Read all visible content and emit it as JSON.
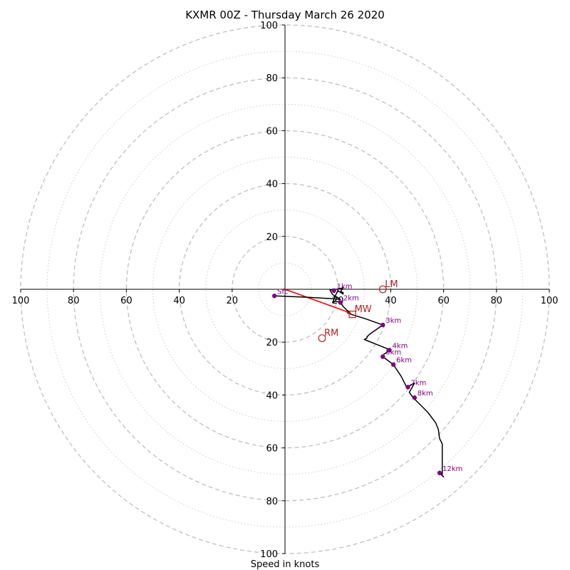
{
  "chart_data": {
    "type": "hodograph",
    "title": "KXMR 00Z - Thursday March 26 2020",
    "xlabel": "Speed in knots",
    "ylim": [
      -100,
      100
    ],
    "xlim": [
      -100,
      100
    ],
    "tick_labels": [
      "100",
      "80",
      "60",
      "40",
      "20",
      "20",
      "40",
      "60",
      "80",
      "100"
    ],
    "y_tick_labels": [
      "100",
      "80",
      "60",
      "40",
      "20",
      "20",
      "40",
      "60",
      "80",
      "100"
    ],
    "rings": {
      "dashed": [
        20,
        40,
        60,
        80,
        100
      ],
      "dotted": [
        10,
        30,
        50,
        70,
        90
      ]
    },
    "grid": true,
    "hodograph_line": [
      [
        -4,
        -2.5
      ],
      [
        -4,
        -2.5
      ],
      [
        8,
        -3
      ],
      [
        17,
        -3.5
      ],
      [
        21,
        -3.8
      ],
      [
        18,
        -2
      ],
      [
        17,
        -0.3
      ],
      [
        18,
        0
      ],
      [
        20,
        0
      ],
      [
        22,
        0.6
      ],
      [
        21,
        -1
      ],
      [
        22,
        -1.2
      ],
      [
        22,
        -1.8
      ],
      [
        20,
        -0.5
      ],
      [
        19,
        -2.5
      ],
      [
        18,
        -5
      ],
      [
        19,
        -4.5
      ],
      [
        21,
        -5
      ],
      [
        22,
        -6.5
      ],
      [
        25,
        -9.5
      ],
      [
        30,
        -11
      ],
      [
        37,
        -13.5
      ],
      [
        32,
        -17
      ],
      [
        31,
        -18
      ],
      [
        31,
        -18.5
      ],
      [
        30,
        -19
      ],
      [
        35,
        -21
      ],
      [
        40,
        -23
      ],
      [
        37.5,
        -24.5
      ],
      [
        37,
        -25.5
      ],
      [
        41,
        -28.5
      ],
      [
        44,
        -33
      ],
      [
        46,
        -37
      ],
      [
        49,
        -35.5
      ],
      [
        47,
        -39
      ],
      [
        48.5,
        -41
      ],
      [
        51,
        -43.5
      ],
      [
        54,
        -46.5
      ],
      [
        57,
        -50.5
      ],
      [
        58,
        -53
      ],
      [
        58.5,
        -56.5
      ],
      [
        59.5,
        -58.5
      ],
      [
        59.5,
        -61
      ],
      [
        59.5,
        -63.5
      ],
      [
        59.5,
        -66
      ],
      [
        59.5,
        -68
      ],
      [
        59.5,
        -70
      ],
      [
        59,
        -70
      ],
      [
        60,
        -71
      ],
      [
        59.5,
        -70.5
      ]
    ],
    "height_markers": [
      {
        "label": "Sfc",
        "u": -4,
        "v": -2.5
      },
      {
        "label": "1km",
        "u": 18.5,
        "v": -0.5
      },
      {
        "label": "2km",
        "u": 21,
        "v": -5
      },
      {
        "label": "3km",
        "u": 37,
        "v": -13.5
      },
      {
        "label": "4km",
        "u": 39.5,
        "v": -23
      },
      {
        "label": "5km",
        "u": 37,
        "v": -25.5
      },
      {
        "label": "6km",
        "u": 41,
        "v": -28.5
      },
      {
        "label": "7km",
        "u": 46.5,
        "v": -37
      },
      {
        "label": "8km",
        "u": 49,
        "v": -41
      },
      {
        "label": "12km",
        "u": 58.5,
        "v": -69.5
      }
    ],
    "motions": [
      {
        "label": "LM",
        "u": 37,
        "v": 0,
        "marker": "circle"
      },
      {
        "label": "MW",
        "u": 25.5,
        "v": -9.5,
        "marker": "square"
      },
      {
        "label": "RM",
        "u": 14,
        "v": -18.5,
        "marker": "circle"
      }
    ],
    "shear_vector": {
      "from": [
        0,
        0
      ],
      "to": [
        24,
        -8.7
      ]
    },
    "colors": {
      "hodograph": "#000000",
      "markers": "#800080",
      "motion": "#b22222",
      "shear": "#ff0000",
      "grid": "#bbbbbb",
      "axes": "#000000"
    }
  }
}
